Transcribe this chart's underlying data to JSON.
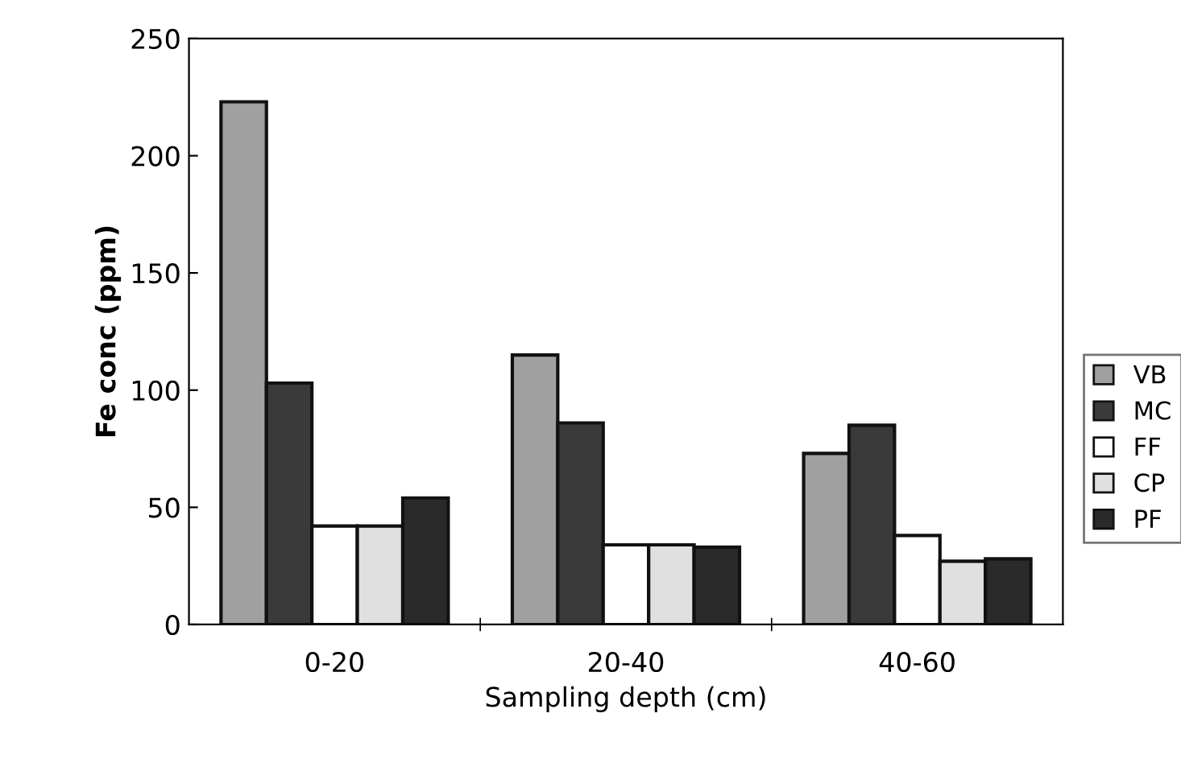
{
  "chart_data": {
    "type": "bar",
    "xlabel": "Sampling depth (cm)",
    "ylabel": "Fe conc (ppm)",
    "categories": [
      "0-20",
      "20-40",
      "40-60"
    ],
    "series": [
      {
        "name": "VB",
        "color": "#a0a0a0",
        "values": [
          223,
          115,
          73
        ]
      },
      {
        "name": "MC",
        "color": "#3a3a3a",
        "values": [
          103,
          86,
          85
        ]
      },
      {
        "name": "FF",
        "color": "#ffffff",
        "values": [
          42,
          34,
          38
        ]
      },
      {
        "name": "CP",
        "color": "#e0e0e0",
        "values": [
          42,
          34,
          27
        ]
      },
      {
        "name": "PF",
        "color": "#2a2a2a",
        "values": [
          54,
          33,
          28
        ]
      }
    ],
    "ylim": [
      0,
      250
    ],
    "yticks": [
      0,
      50,
      100,
      150,
      200,
      250
    ],
    "grid": false,
    "legend": "right"
  }
}
